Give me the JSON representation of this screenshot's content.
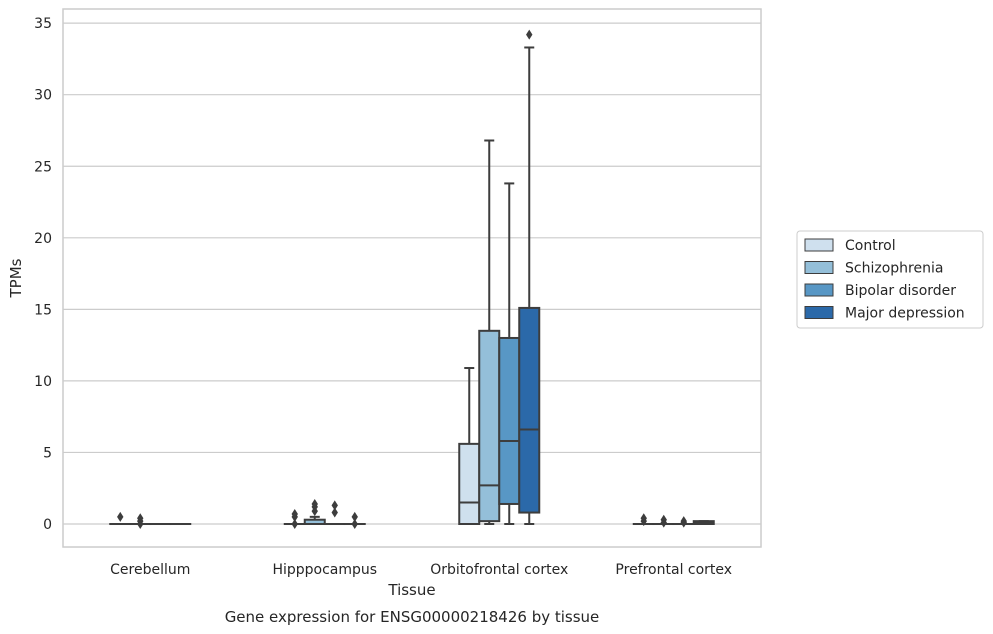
{
  "caption": "Gene expression for ENSG00000218426 by tissue",
  "chart_data": {
    "type": "box",
    "title": "",
    "xlabel": "Tissue",
    "ylabel": "TPMs",
    "ylim": [
      -1.7,
      36
    ],
    "yticks": [
      0,
      5,
      10,
      15,
      20,
      25,
      30,
      35
    ],
    "grid": "horizontal",
    "legend_position": "right",
    "categories": [
      "Cerebellum",
      "Hipppocampus",
      "Orbitofrontal cortex",
      "Prefrontal cortex"
    ],
    "series": [
      {
        "name": "Control",
        "color": "#cfe0ee",
        "boxes": [
          {
            "q1": 0,
            "median": 0,
            "q3": 0,
            "whisker_low": 0,
            "whisker_high": 0,
            "outliers": [
              0.5
            ]
          },
          {
            "q1": 0,
            "median": 0,
            "q3": 0,
            "whisker_low": 0,
            "whisker_high": 0,
            "outliers": [
              0.0,
              0.5,
              0.7
            ]
          },
          {
            "q1": 0,
            "median": 1.5,
            "q3": 5.6,
            "whisker_low": 0,
            "whisker_high": 10.9,
            "outliers": []
          },
          {
            "q1": 0,
            "median": 0,
            "q3": 0,
            "whisker_low": 0,
            "whisker_high": 0,
            "outliers": [
              0.2,
              0.4
            ]
          }
        ]
      },
      {
        "name": "Schizophrenia",
        "color": "#94bfd9",
        "boxes": [
          {
            "q1": 0,
            "median": 0,
            "q3": 0,
            "whisker_low": 0,
            "whisker_high": 0,
            "outliers": [
              0.0,
              0.2,
              0.4
            ]
          },
          {
            "q1": 0,
            "median": 0,
            "q3": 0.3,
            "whisker_low": 0,
            "whisker_high": 0.5,
            "outliers": [
              0.9,
              1.2,
              1.4
            ]
          },
          {
            "q1": 0.2,
            "median": 2.7,
            "q3": 13.5,
            "whisker_low": 0,
            "whisker_high": 26.8,
            "outliers": []
          },
          {
            "q1": 0,
            "median": 0,
            "q3": 0,
            "whisker_low": 0,
            "whisker_high": 0,
            "outliers": [
              0.1,
              0.3
            ]
          }
        ]
      },
      {
        "name": "Bipolar disorder",
        "color": "#5897c5",
        "boxes": [
          {
            "q1": 0,
            "median": 0,
            "q3": 0,
            "whisker_low": 0,
            "whisker_high": 0,
            "outliers": []
          },
          {
            "q1": 0,
            "median": 0,
            "q3": 0,
            "whisker_low": 0,
            "whisker_high": 0,
            "outliers": [
              0.8,
              1.3
            ]
          },
          {
            "q1": 1.4,
            "median": 5.8,
            "q3": 13.0,
            "whisker_low": 0,
            "whisker_high": 23.8,
            "outliers": []
          },
          {
            "q1": 0,
            "median": 0,
            "q3": 0,
            "whisker_low": 0,
            "whisker_high": 0,
            "outliers": [
              0.1,
              0.2
            ]
          }
        ]
      },
      {
        "name": "Major depression",
        "color": "#2b69a9",
        "boxes": [
          {
            "q1": 0,
            "median": 0,
            "q3": 0,
            "whisker_low": 0,
            "whisker_high": 0,
            "outliers": []
          },
          {
            "q1": 0,
            "median": 0,
            "q3": 0,
            "whisker_low": 0,
            "whisker_high": 0,
            "outliers": [
              0.0,
              0.5
            ]
          },
          {
            "q1": 0.8,
            "median": 6.6,
            "q3": 15.1,
            "whisker_low": 0,
            "whisker_high": 33.3,
            "outliers": [
              34.2
            ]
          },
          {
            "q1": 0,
            "median": 0.1,
            "q3": 0.2,
            "whisker_low": 0,
            "whisker_high": 0.2,
            "outliers": []
          }
        ]
      }
    ]
  }
}
